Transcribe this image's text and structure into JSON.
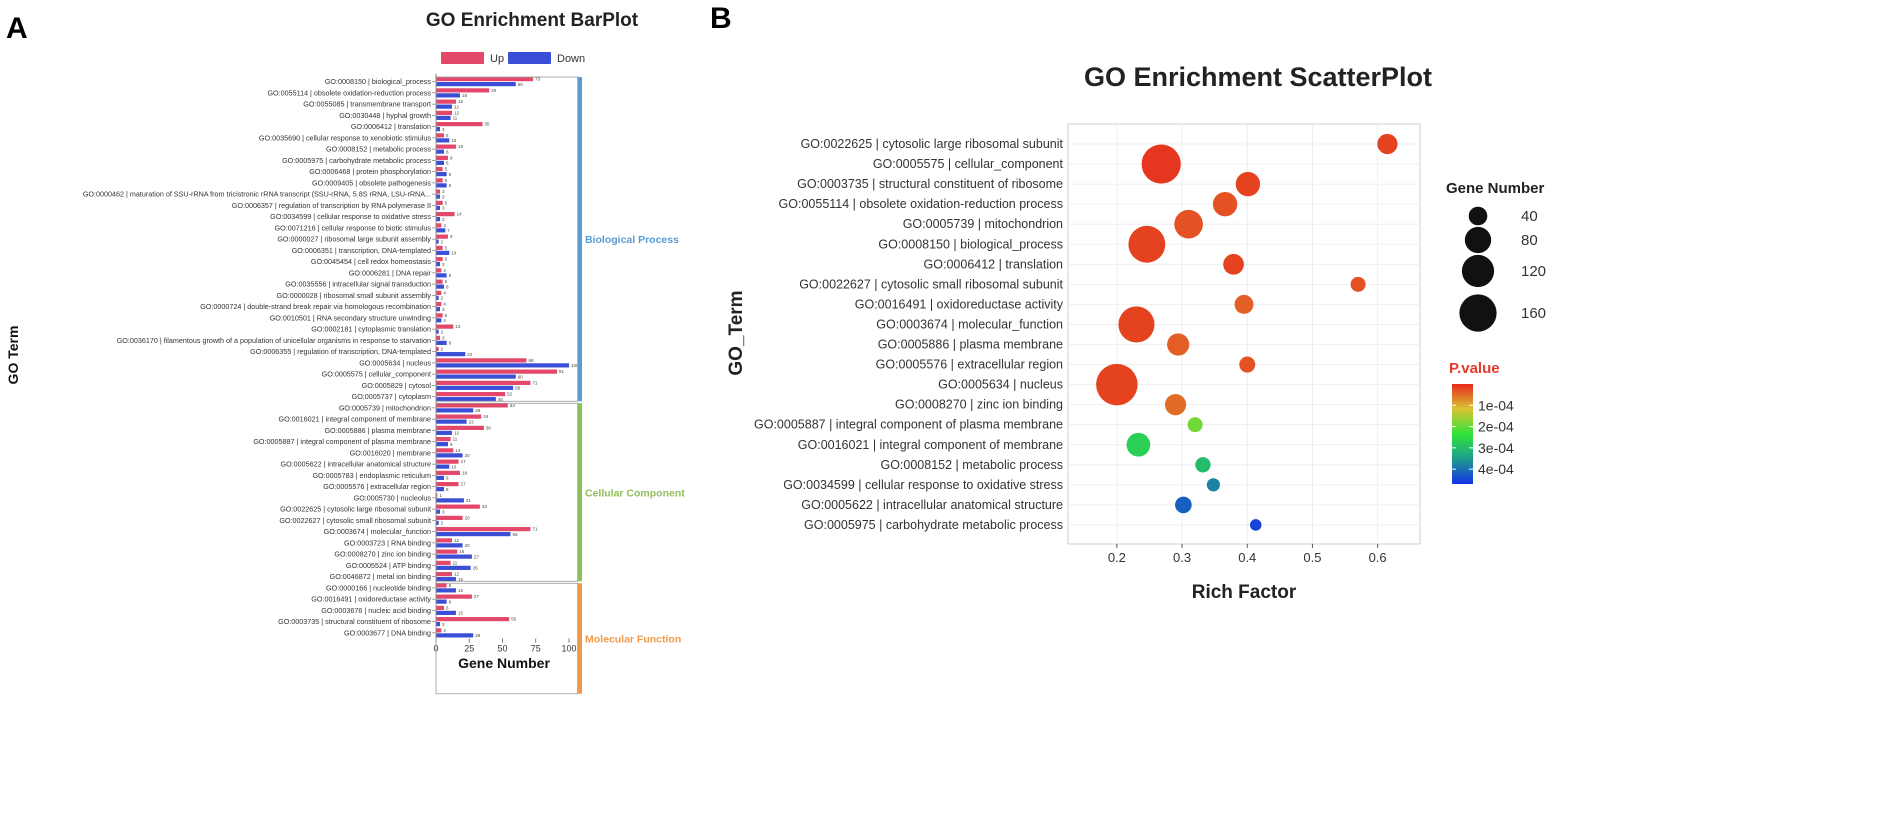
{
  "colors": {
    "up": "#e3486a",
    "down": "#3b4fd6",
    "bp_bracket": "#5b9bd5",
    "cc_bracket": "#8fbf5a",
    "mf_bracket": "#ef9a48",
    "grid": "#ebebeb",
    "plot_bg": "#ffffff",
    "point_scale": [
      "#e8291d",
      "#d9c431",
      "#2fe43a",
      "#1d9c8f",
      "#1432e6"
    ]
  },
  "panel_a": {
    "panel_label": "A",
    "groups": [
      {
        "name": "Biological Process",
        "start": 0,
        "end": 28
      },
      {
        "name": "Cellular Component",
        "start": 29,
        "end": 44
      },
      {
        "name": "Molecular Function",
        "start": 45,
        "end": 54
      }
    ]
  },
  "panel_b": {
    "panel_label": "B"
  },
  "chart_data": [
    {
      "type": "bar",
      "title": "GO Enrichment BarPlot",
      "orientation": "horizontal",
      "xlabel": "Gene Number",
      "ylabel": "GO Term",
      "xlim": [
        0,
        105
      ],
      "xticks": [
        0,
        25,
        50,
        75,
        100
      ],
      "legend_position": "top",
      "categories": [
        "GO:0008150 | biological_process",
        "GO:0055114 | obsolete oxidation-reduction process",
        "GO:0055085 | transmembrane transport",
        "GO:0030448 | hyphal growth",
        "GO:0006412 | translation",
        "GO:0035690 | cellular response to xenobiotic stimulus",
        "GO:0008152 | metabolic process",
        "GO:0005975 | carbohydrate metabolic process",
        "GO:0006468 | protein phosphorylation",
        "GO:0009405 | obsolete pathogenesis",
        "GO:0000462 | maturation of SSU-rRNA from tricistronic rRNA transcript (SSU-rRNA, 5.8S rRNA, LSU-rRNA...",
        "GO:0006357 | regulation of transcription by RNA polymerase II",
        "GO:0034599 | cellular response to oxidative stress",
        "GO:0071216 | cellular response to biotic stimulus",
        "GO:0000027 | ribosomal large subunit assembly",
        "GO:0006351 | transcription, DNA-templated",
        "GO:0045454 | cell redox homeostasis",
        "GO:0006281 | DNA repair",
        "GO:0035556 | intracellular signal transduction",
        "GO:0000028 | ribosomal small subunit assembly",
        "GO:0000724 | double-strand break repair via homologous recombination",
        "GO:0010501 | RNA secondary structure unwinding",
        "GO:0002181 | cytoplasmic translation",
        "GO:0036170 | filamentous growth of a population of unicellular organisms in response to starvation",
        "GO:0006355 | regulation of transcription, DNA-templated",
        "GO:0005634 | nucleus",
        "GO:0005575 | cellular_component",
        "GO:0005829 | cytosol",
        "GO:0005737 | cytoplasm",
        "GO:0005739 | mitochondrion",
        "GO:0016021 | integral component of membrane",
        "GO:0005886 | plasma membrane",
        "GO:0005887 | integral component of plasma membrane",
        "GO:0016020 | membrane",
        "GO:0005622 | intracellular anatomical structure",
        "GO:0005783 | endoplasmic reticulum",
        "GO:0005576 | extracellular region",
        "GO:0005730 | nucleolus",
        "GO:0022625 | cytosolic large ribosomal subunit",
        "GO:0022627 | cytosolic small ribosomal subunit",
        "GO:0003674 | molecular_function",
        "GO:0003723 | RNA binding",
        "GO:0008270 | zinc ion binding",
        "GO:0005524 | ATP binding",
        "GO:0046872 | metal ion binding",
        "GO:0000166 | nucleotide binding",
        "GO:0016491 | oxidoreductase activity",
        "GO:0003676 | nucleic acid binding",
        "GO:0003735 | structural constituent of ribosome",
        "GO:0003677 | DNA binding"
      ],
      "series": [
        {
          "name": "Up",
          "values": [
            73,
            40,
            15,
            12,
            35,
            6,
            15,
            9,
            5,
            5,
            3,
            5,
            14,
            4,
            9,
            5,
            5,
            4,
            5,
            4,
            4,
            5,
            13,
            3,
            2,
            68,
            91,
            71,
            52,
            54,
            34,
            36,
            11,
            13,
            17,
            18,
            17,
            1,
            33,
            20,
            71,
            12,
            16,
            11,
            12,
            8,
            27,
            6,
            55,
            4
          ]
        },
        {
          "name": "Down",
          "values": [
            60,
            18,
            12,
            11,
            3,
            10,
            6,
            6,
            8,
            8,
            3,
            3,
            3,
            7,
            2,
            10,
            3,
            8,
            6,
            2,
            3,
            4,
            2,
            8,
            22,
            100,
            60,
            58,
            45,
            28,
            23,
            12,
            9,
            20,
            10,
            6,
            6,
            21,
            3,
            2,
            56,
            20,
            27,
            26,
            15,
            15,
            8,
            15,
            3,
            28
          ]
        }
      ]
    },
    {
      "type": "scatter",
      "title": "GO Enrichment ScatterPlot",
      "xlabel": "Rich Factor",
      "ylabel": "GO_Term",
      "xlim": [
        0.125,
        0.665
      ],
      "xticks": [
        0.2,
        0.3,
        0.4,
        0.5,
        0.6
      ],
      "size_legend_title": "Gene Number",
      "size_legend_values": [
        40,
        80,
        120,
        160
      ],
      "color_legend_title": "P.value",
      "color_legend_ticks": [
        "1e-04",
        "2e-04",
        "3e-04",
        "4e-04"
      ],
      "color_range": [
        0,
        0.00047
      ],
      "legend_position": "right",
      "points": [
        {
          "term": "GO:0022625 | cytosolic large ribosomal subunit",
          "rich_factor": 0.615,
          "gene_number": 40,
          "p_value": 2e-05
        },
        {
          "term": "GO:0005575 | cellular_component",
          "rich_factor": 0.268,
          "gene_number": 150,
          "p_value": 1e-05
        },
        {
          "term": "GO:0003735 | structural constituent of ribosome",
          "rich_factor": 0.401,
          "gene_number": 58,
          "p_value": 2e-05
        },
        {
          "term": "GO:0055114 | obsolete oxidation-reduction process",
          "rich_factor": 0.366,
          "gene_number": 58,
          "p_value": 3e-05
        },
        {
          "term": "GO:0005739 | mitochondrion",
          "rich_factor": 0.31,
          "gene_number": 80,
          "p_value": 3e-05
        },
        {
          "term": "GO:0008150 | biological_process",
          "rich_factor": 0.246,
          "gene_number": 133,
          "p_value": 2e-05
        },
        {
          "term": "GO:0006412 | translation",
          "rich_factor": 0.379,
          "gene_number": 42,
          "p_value": 2e-05
        },
        {
          "term": "GO:0022627 | cytosolic small ribosomal subunit",
          "rich_factor": 0.57,
          "gene_number": 22,
          "p_value": 3e-05
        },
        {
          "term": "GO:0016491 | oxidoreductase activity",
          "rich_factor": 0.395,
          "gene_number": 35,
          "p_value": 4e-05
        },
        {
          "term": "GO:0003674 | molecular_function",
          "rich_factor": 0.23,
          "gene_number": 127,
          "p_value": 2e-05
        },
        {
          "term": "GO:0005886 | plasma membrane",
          "rich_factor": 0.294,
          "gene_number": 48,
          "p_value": 4e-05
        },
        {
          "term": "GO:0005576 | extracellular region",
          "rich_factor": 0.4,
          "gene_number": 25,
          "p_value": 3e-05
        },
        {
          "term": "GO:0005634 | nucleus",
          "rich_factor": 0.2,
          "gene_number": 168,
          "p_value": 2e-05
        },
        {
          "term": "GO:0008270 | zinc ion binding",
          "rich_factor": 0.29,
          "gene_number": 44,
          "p_value": 5e-05
        },
        {
          "term": "GO:0005887 | integral component of plasma membrane",
          "rich_factor": 0.32,
          "gene_number": 22,
          "p_value": 0.00019
        },
        {
          "term": "GO:0016021 | integral component of membrane",
          "rich_factor": 0.233,
          "gene_number": 55,
          "p_value": 0.00027
        },
        {
          "term": "GO:0008152 | metabolic process",
          "rich_factor": 0.332,
          "gene_number": 23,
          "p_value": 0.0003
        },
        {
          "term": "GO:0034599 | cellular response to oxidative stress",
          "rich_factor": 0.348,
          "gene_number": 17,
          "p_value": 0.00038
        },
        {
          "term": "GO:0005622 | intracellular anatomical structure",
          "rich_factor": 0.302,
          "gene_number": 27,
          "p_value": 0.00042
        },
        {
          "term": "GO:0005975 | carbohydrate metabolic process",
          "rich_factor": 0.413,
          "gene_number": 13,
          "p_value": 0.00045
        }
      ]
    }
  ]
}
